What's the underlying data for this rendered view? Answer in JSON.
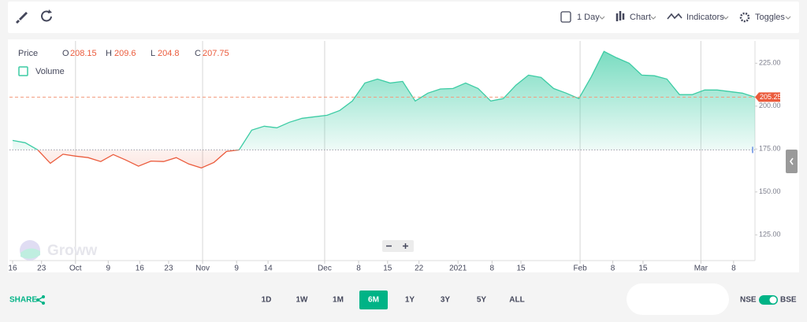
{
  "toolbar": {
    "interval": "1 Day",
    "chart": "Chart",
    "indicators": "Indicators",
    "toggles": "Toggles"
  },
  "legend": {
    "price": "Price",
    "o_label": "O",
    "open": 208.15,
    "h_label": "H",
    "high": 209.6,
    "l_label": "L",
    "low": 204.8,
    "c_label": "C",
    "close": 207.75,
    "volume": "Volume"
  },
  "watermark": "Groww",
  "chart_data": {
    "type": "area",
    "values": [
      180,
      178.7,
      174.5,
      166.7,
      172,
      170.9,
      170,
      167.7,
      171.8,
      168.6,
      165,
      168,
      167.7,
      170,
      166.3,
      164,
      167.2,
      173.6,
      174.5,
      186,
      188.3,
      187.4,
      190.6,
      192.9,
      193.8,
      194.7,
      197.5,
      203,
      213.5,
      215.8,
      213.5,
      214.4,
      203,
      207.6,
      210,
      210.3,
      213.5,
      210.3,
      203,
      204.4,
      212.2,
      218.1,
      216.7,
      210.3,
      207.6,
      204.4,
      217.2,
      231.9,
      228.2,
      225,
      218.1,
      217.7,
      215.8,
      206.7,
      206.7,
      209.4,
      209.4,
      208.5,
      207.6,
      205.25
    ],
    "xlim": [
      -0.25,
      59
    ],
    "xticks": [
      {
        "value": 0,
        "label": "16"
      },
      {
        "value": 2.3,
        "label": "23"
      },
      {
        "value": 5,
        "label": "Oct"
      },
      {
        "value": 7.6,
        "label": "9"
      },
      {
        "value": 10.1,
        "label": "16"
      },
      {
        "value": 12.4,
        "label": "23"
      },
      {
        "value": 15.1,
        "label": "Nov"
      },
      {
        "value": 17.8,
        "label": "9"
      },
      {
        "value": 20.3,
        "label": "14"
      },
      {
        "value": 24.8,
        "label": "Dec"
      },
      {
        "value": 27.5,
        "label": "8"
      },
      {
        "value": 29.8,
        "label": "15"
      },
      {
        "value": 32.3,
        "label": "22"
      },
      {
        "value": 35.4,
        "label": "2021"
      },
      {
        "value": 38.1,
        "label": "8"
      },
      {
        "value": 40.4,
        "label": "15"
      },
      {
        "value": 45.1,
        "label": "Feb"
      },
      {
        "value": 47.7,
        "label": "8"
      },
      {
        "value": 50.1,
        "label": "15"
      },
      {
        "value": 54.7,
        "label": "Mar"
      },
      {
        "value": 57.3,
        "label": "8"
      }
    ],
    "ylim": [
      110,
      238
    ],
    "yticks": [
      {
        "value": 125,
        "label": "125.00"
      },
      {
        "value": 150,
        "label": "150.00"
      },
      {
        "value": 175,
        "label": "175.00"
      },
      {
        "value": 200,
        "label": "200.00"
      },
      {
        "value": 225,
        "label": "225.00"
      }
    ],
    "baseline": 174.5,
    "price_line": {
      "value": 205.25,
      "label": "205.25"
    },
    "up_color": "#3ccca4",
    "down_color": "#eb5b3c"
  },
  "footer": {
    "share": "SHARE",
    "ranges": [
      "1D",
      "1W",
      "1M",
      "6M",
      "1Y",
      "3Y",
      "5Y",
      "ALL"
    ],
    "active_range": 3,
    "nse": "NSE",
    "bse": "BSE"
  }
}
